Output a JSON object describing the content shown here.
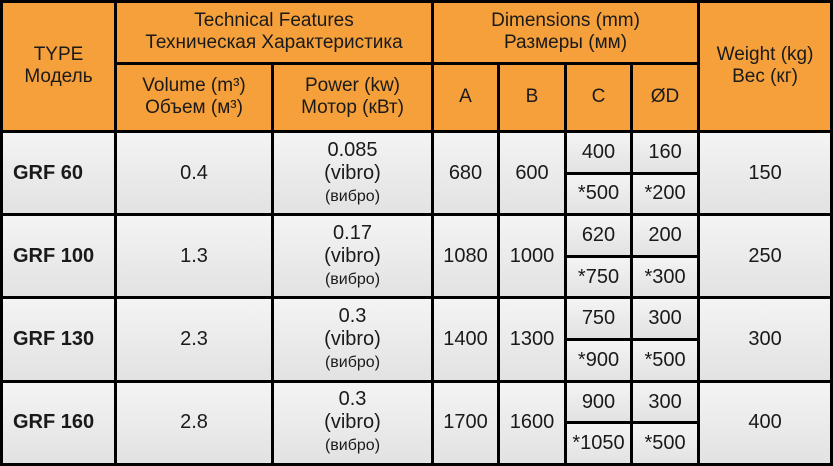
{
  "header": {
    "type": [
      "TYPE",
      "Модель"
    ],
    "technical": [
      "Technical Features",
      "Техническая  Характеристика"
    ],
    "volume": [
      "Volume (m³)",
      "Объем  (м³)"
    ],
    "power": [
      "Power (kw)",
      "Мотор  (кВт)"
    ],
    "dimensions": [
      "Dimensions (mm)",
      "Размеры  (мм)"
    ],
    "a": "A",
    "b": "B",
    "c": "C",
    "d": "ØD",
    "weight": [
      "Weight (kg)",
      "Вес  (кг)"
    ]
  },
  "rows": [
    {
      "type": "GRF 60",
      "volume": "0.4",
      "power": [
        "0.085",
        "(vibro)",
        "(вибро)"
      ],
      "a": "680",
      "b": "600",
      "c": [
        "400",
        "*500"
      ],
      "d": [
        "160",
        "*200"
      ],
      "weight": "150"
    },
    {
      "type": "GRF 100",
      "volume": "1.3",
      "power": [
        "0.17",
        "(vibro)",
        "(вибро)"
      ],
      "a": "1080",
      "b": "1000",
      "c": [
        "620",
        "*750"
      ],
      "d": [
        "200",
        "*300"
      ],
      "weight": "250"
    },
    {
      "type": "GRF 130",
      "volume": "2.3",
      "power": [
        "0.3",
        "(vibro)",
        "(вибро)"
      ],
      "a": "1400",
      "b": "1300",
      "c": [
        "750",
        "*900"
      ],
      "d": [
        "300",
        "*500"
      ],
      "weight": "300"
    },
    {
      "type": "GRF 160",
      "volume": "2.8",
      "power": [
        "0.3",
        "(vibro)",
        "(вибро)"
      ],
      "a": "1700",
      "b": "1600",
      "c": [
        "900",
        "*1050"
      ],
      "d": [
        "300",
        "*500"
      ],
      "weight": "400"
    }
  ],
  "colors": {
    "header_bg": "#f5a03a",
    "body_bg": "#ececec",
    "border": "#000000"
  }
}
